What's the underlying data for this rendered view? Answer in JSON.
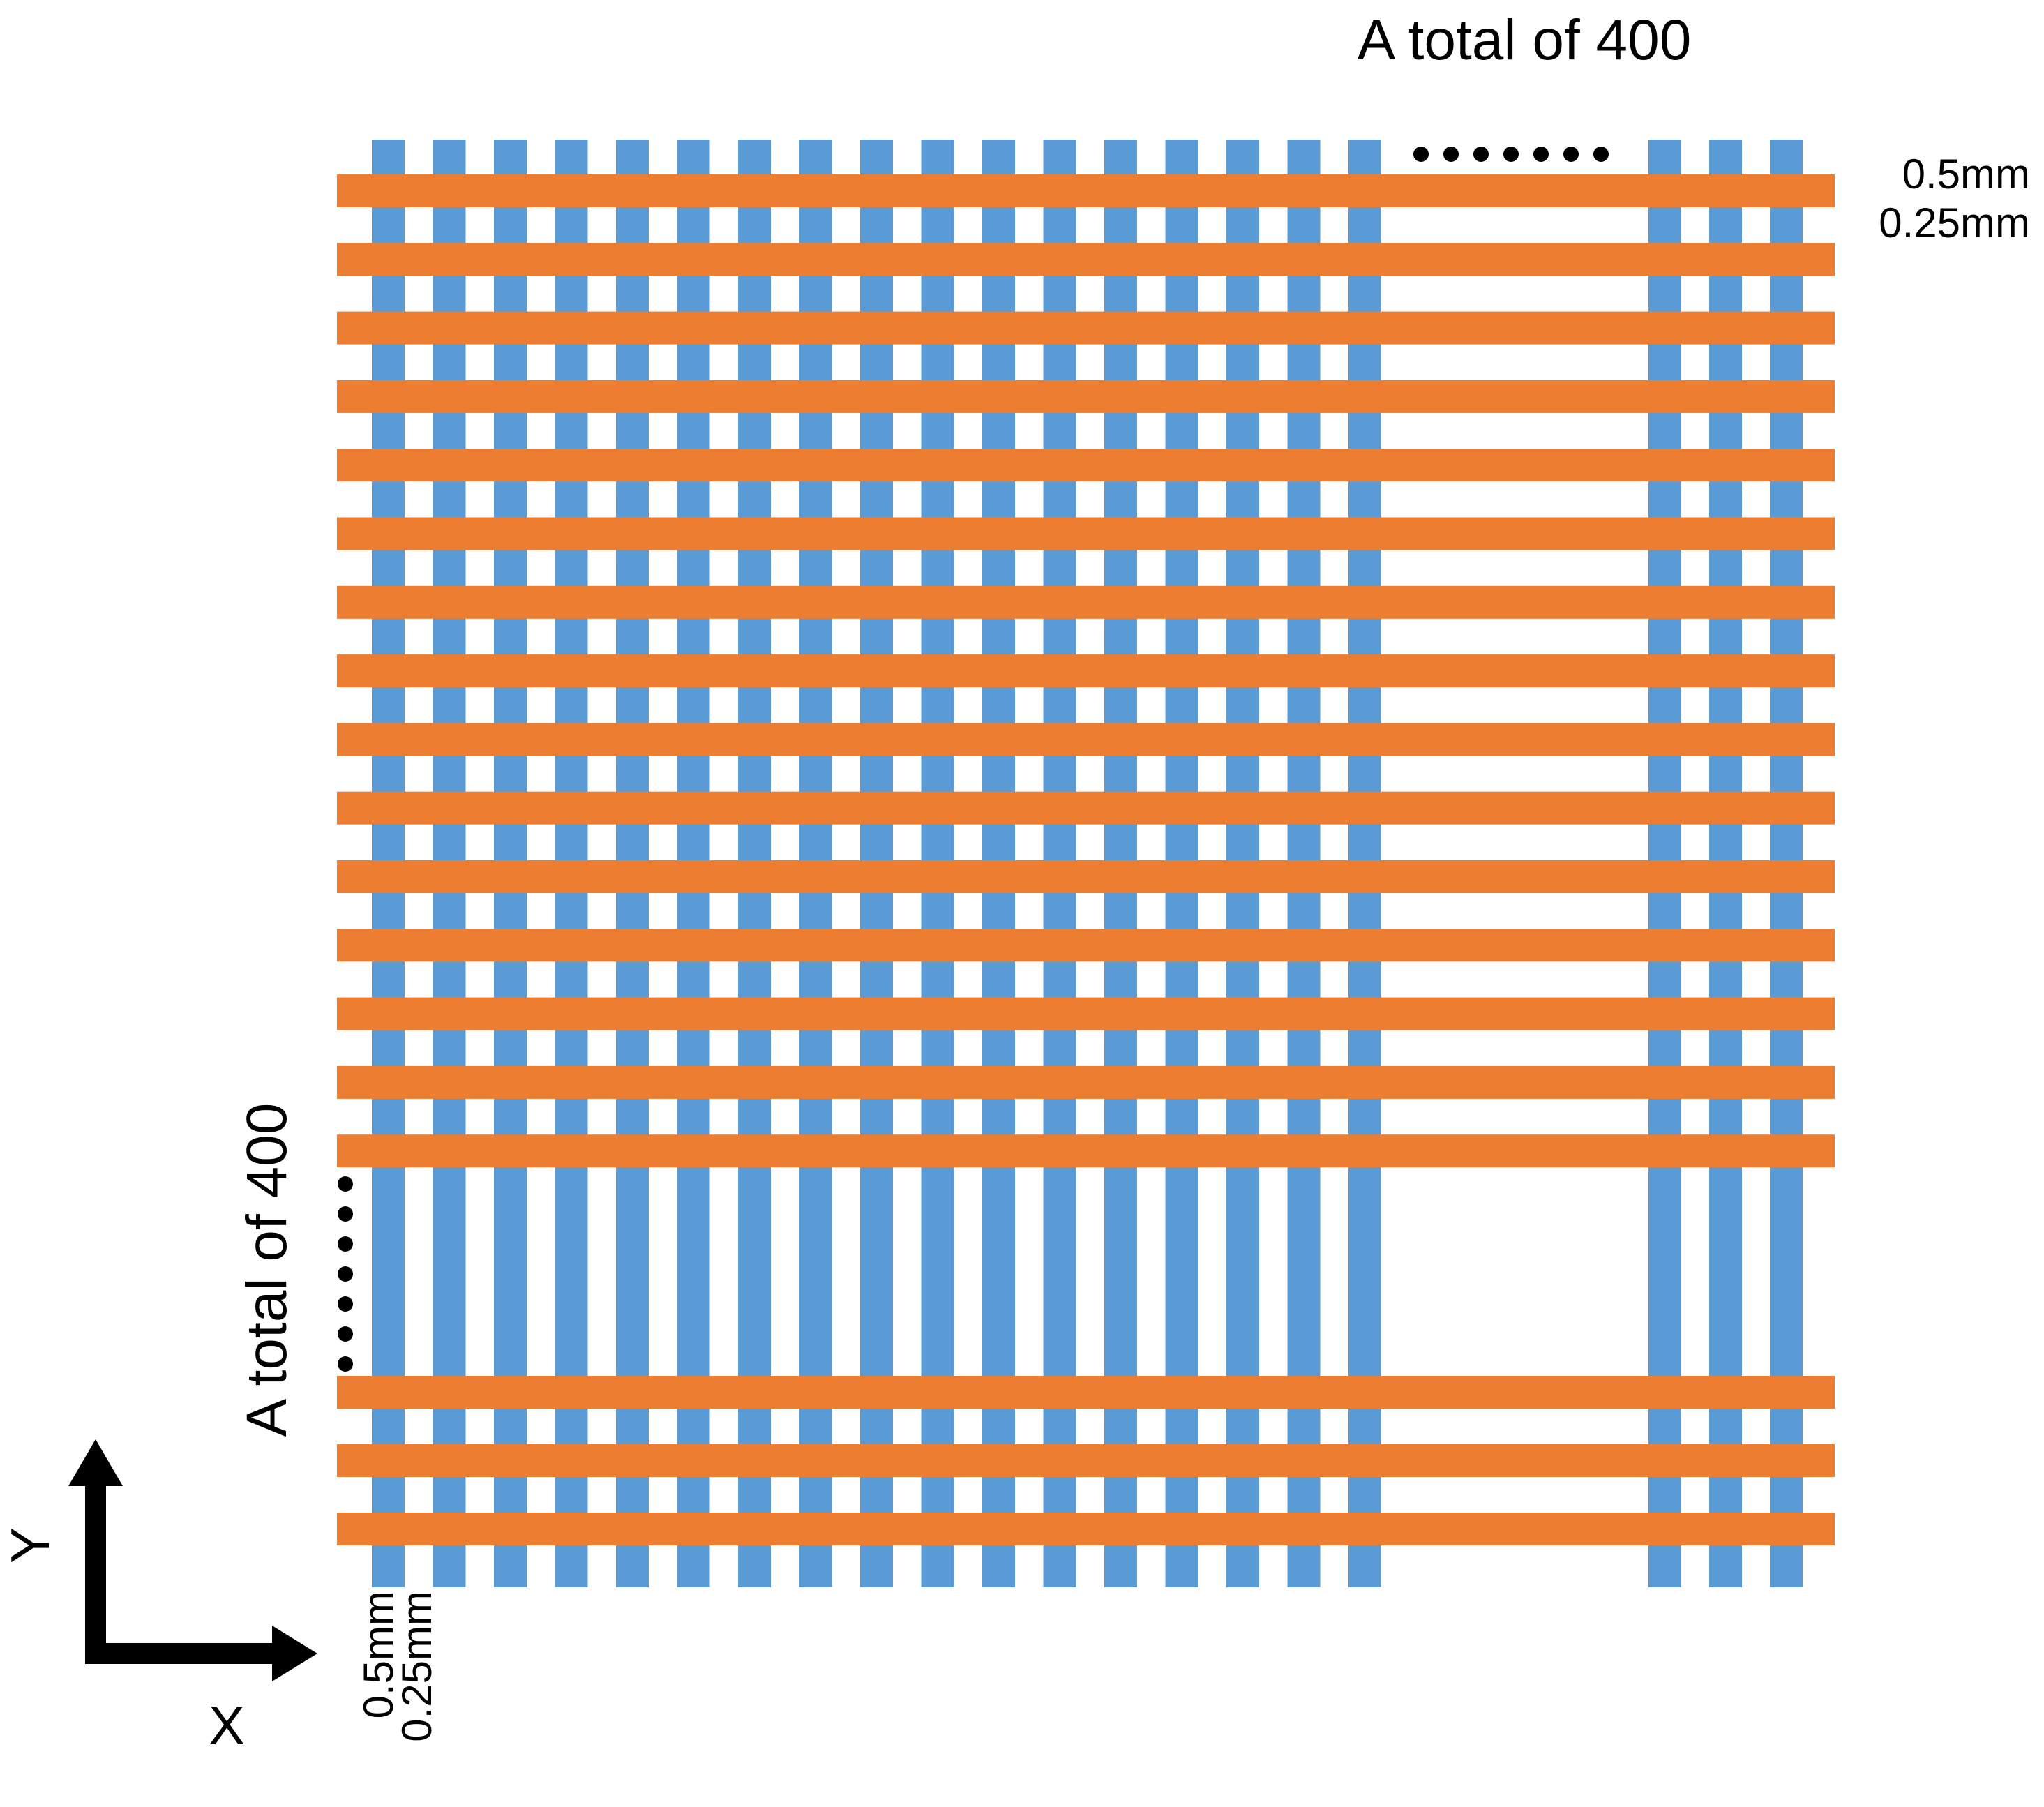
{
  "diagram": {
    "title_top": "A total of 400",
    "title_left": "A total of 400",
    "right_label_width": "0.5mm",
    "right_label_gap": "0.25mm",
    "bottom_label_width": "0.5mm",
    "bottom_label_gap": "0.25mm",
    "axis_x": "X",
    "axis_y": "Y"
  },
  "colors": {
    "vertical_strip": "#5b9bd5",
    "horizontal_strip": "#ed7d31",
    "background": "#ffffff",
    "ellipsis_dot": "#000000",
    "arrow": "#000000"
  },
  "strips": {
    "vertical_visible": 20,
    "horizontal_visible": 18,
    "total_each_direction": 400,
    "strip_width_mm": 0.5,
    "strip_gap_mm": 0.25
  }
}
